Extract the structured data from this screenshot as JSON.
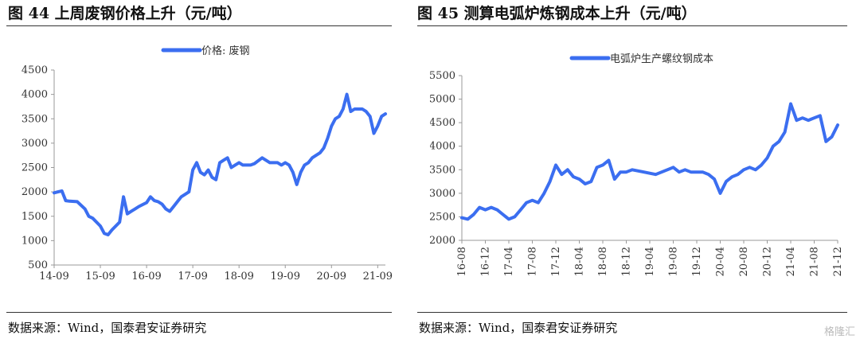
{
  "left": {
    "title": "图 44  上周废钢价格上升（元/吨）",
    "source": "数据来源：Wind，国泰君安证券研究",
    "chart_data": {
      "type": "line",
      "title": "",
      "xlabel": "",
      "ylabel": "",
      "ylim": [
        500,
        4500
      ],
      "yticks": [
        500,
        1000,
        1500,
        2000,
        2500,
        3000,
        3500,
        4000,
        4500
      ],
      "xtick_labels": [
        "14-09",
        "15-09",
        "16-09",
        "17-09",
        "18-09",
        "19-09",
        "20-09",
        "21-09"
      ],
      "legend_position": "top-center",
      "grid": false,
      "color": "#3b6ef0",
      "series": [
        {
          "name": "价格: 废钢",
          "x": [
            "2014-09",
            "2014-10",
            "2014-11",
            "2014-12",
            "2015-01",
            "2015-03",
            "2015-05",
            "2015-06",
            "2015-07",
            "2015-09",
            "2015-10",
            "2015-11",
            "2015-12",
            "2016-02",
            "2016-03",
            "2016-04",
            "2016-05",
            "2016-06",
            "2016-07",
            "2016-09",
            "2016-10",
            "2016-11",
            "2016-12",
            "2017-01",
            "2017-02",
            "2017-03",
            "2017-04",
            "2017-05",
            "2017-06",
            "2017-07",
            "2017-08",
            "2017-09",
            "2017-10",
            "2017-11",
            "2017-12",
            "2018-01",
            "2018-02",
            "2018-03",
            "2018-04",
            "2018-05",
            "2018-06",
            "2018-07",
            "2018-08",
            "2018-09",
            "2018-10",
            "2018-11",
            "2018-12",
            "2019-01",
            "2019-03",
            "2019-05",
            "2019-07",
            "2019-08",
            "2019-09",
            "2019-10",
            "2019-11",
            "2019-12",
            "2020-01",
            "2020-02",
            "2020-03",
            "2020-04",
            "2020-05",
            "2020-06",
            "2020-07",
            "2020-08",
            "2020-09",
            "2020-10",
            "2020-11",
            "2020-12",
            "2021-01",
            "2021-02",
            "2021-03",
            "2021-04",
            "2021-05",
            "2021-06",
            "2021-07",
            "2021-08",
            "2021-09",
            "2021-10",
            "2021-11"
          ],
          "values": [
            1980,
            2000,
            2020,
            1820,
            1810,
            1800,
            1650,
            1500,
            1460,
            1300,
            1150,
            1120,
            1220,
            1380,
            1900,
            1550,
            1600,
            1650,
            1700,
            1780,
            1900,
            1820,
            1800,
            1750,
            1650,
            1600,
            1700,
            1800,
            1900,
            1950,
            2000,
            2450,
            2600,
            2400,
            2350,
            2450,
            2300,
            2250,
            2600,
            2650,
            2700,
            2500,
            2550,
            2600,
            2550,
            2550,
            2550,
            2580,
            2700,
            2600,
            2600,
            2550,
            2600,
            2550,
            2400,
            2150,
            2400,
            2550,
            2600,
            2700,
            2750,
            2800,
            2900,
            3100,
            3350,
            3500,
            3550,
            3700,
            4000,
            3650,
            3700,
            3700,
            3700,
            3650,
            3550,
            3200,
            3350,
            3550,
            3600
          ]
        }
      ]
    }
  },
  "right": {
    "title": "图 45  测算电弧炉炼钢成本上升（元/吨）",
    "source": "数据来源：Wind，国泰君安证券研究",
    "watermark": "格隆汇",
    "chart_data": {
      "type": "line",
      "title": "",
      "xlabel": "",
      "ylabel": "",
      "ylim": [
        2000,
        5500
      ],
      "yticks": [
        2000,
        2500,
        3000,
        3500,
        4000,
        4500,
        5000,
        5500
      ],
      "xtick_labels": [
        "16-08",
        "16-12",
        "17-04",
        "17-08",
        "17-12",
        "18-04",
        "18-08",
        "18-12",
        "19-04",
        "19-08",
        "19-12",
        "20-04",
        "20-08",
        "20-12",
        "21-04",
        "21-08",
        "21-12"
      ],
      "legend_position": "top-center",
      "grid": false,
      "color": "#3b6ef0",
      "series": [
        {
          "name": "电弧炉生产螺纹钢成本",
          "x": [
            "2016-08",
            "2016-09",
            "2016-10",
            "2016-11",
            "2016-12",
            "2017-01",
            "2017-02",
            "2017-03",
            "2017-04",
            "2017-05",
            "2017-06",
            "2017-07",
            "2017-08",
            "2017-09",
            "2017-10",
            "2017-11",
            "2017-12",
            "2018-01",
            "2018-02",
            "2018-03",
            "2018-04",
            "2018-05",
            "2018-06",
            "2018-07",
            "2018-08",
            "2018-09",
            "2018-10",
            "2018-11",
            "2018-12",
            "2019-01",
            "2019-03",
            "2019-05",
            "2019-07",
            "2019-08",
            "2019-09",
            "2019-10",
            "2019-11",
            "2019-12",
            "2020-01",
            "2020-02",
            "2020-03",
            "2020-04",
            "2020-05",
            "2020-06",
            "2020-07",
            "2020-08",
            "2020-09",
            "2020-10",
            "2020-11",
            "2020-12",
            "2021-01",
            "2021-02",
            "2021-03",
            "2021-04",
            "2021-05",
            "2021-06",
            "2021-07",
            "2021-08",
            "2021-09",
            "2021-10",
            "2021-11",
            "2021-12"
          ],
          "values": [
            2480,
            2450,
            2550,
            2700,
            2650,
            2700,
            2650,
            2550,
            2450,
            2500,
            2650,
            2800,
            2850,
            2800,
            3000,
            3250,
            3600,
            3400,
            3500,
            3350,
            3300,
            3200,
            3250,
            3550,
            3600,
            3700,
            3300,
            3450,
            3450,
            3500,
            3450,
            3400,
            3500,
            3550,
            3450,
            3500,
            3450,
            3450,
            3450,
            3400,
            3300,
            3000,
            3250,
            3350,
            3400,
            3500,
            3550,
            3500,
            3600,
            3750,
            4000,
            4100,
            4300,
            4900,
            4550,
            4600,
            4550,
            4600,
            4650,
            4100,
            4200,
            4450
          ]
        }
      ]
    }
  }
}
